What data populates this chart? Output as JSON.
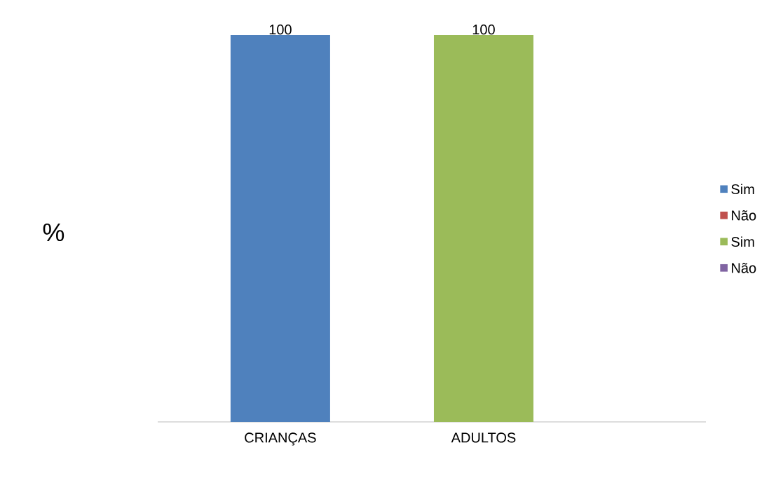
{
  "chart_data": {
    "type": "bar",
    "ylabel": "%",
    "categories": [
      "CRIANÇAS",
      "ADULTOS"
    ],
    "series": [
      {
        "name": "Sim",
        "color": "#4f81bd",
        "values": [
          100,
          null
        ]
      },
      {
        "name": "Não",
        "color": "#c0504d",
        "values": [
          null,
          null
        ]
      },
      {
        "name": "Sim",
        "color": "#9bbb59",
        "values": [
          null,
          100
        ]
      },
      {
        "name": "Não",
        "color": "#8064a2",
        "values": [
          null,
          null
        ]
      }
    ],
    "data_labels": true,
    "legend": "right"
  }
}
